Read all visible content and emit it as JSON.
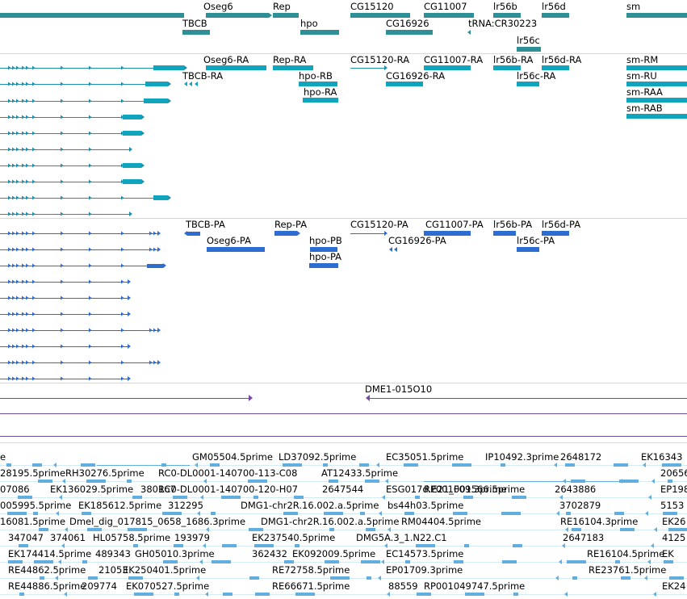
{
  "colors": {
    "gene": "#2f8f97",
    "transcript": "#10a5bd",
    "transcript_line": "#1f8fb0",
    "protein": "#2d6cd1",
    "marker": "#7b4aa8",
    "marker_line": "#6a4fa0",
    "est": "#63aee0",
    "separator": "#d8d8d8"
  },
  "tracks": {
    "genes": {
      "labels": [
        "Oseg6",
        "Rep",
        "CG15120",
        "CG11007",
        "lr56b",
        "lr56d",
        "sm",
        "TBCB",
        "hpo",
        "CG16926",
        "tRNA:CR30223",
        "lr56c"
      ]
    },
    "transcripts": {
      "labels": [
        "Oseg6-RA",
        "Rep-RA",
        "CG15120-RA",
        "CG11007-RA",
        "lr56b-RA",
        "lr56d-RA",
        "sm-RM",
        "TBCB-RA",
        "hpo-RB",
        "CG16926-RA",
        "lr56c-RA",
        "sm-RU",
        "hpo-RA",
        "sm-RAA",
        "sm-RAB"
      ]
    },
    "proteins": {
      "labels": [
        "TBCB-PA",
        "Rep-PA",
        "CG15120-PA",
        "CG11007-PA",
        "lr56b-PA",
        "lr56d-PA",
        "Oseg6-PA",
        "hpo-PB",
        "CG16926-PA",
        "lr56c-PA",
        "hpo-PA"
      ]
    },
    "markers": {
      "labels": [
        "DME1-015O10"
      ]
    },
    "ests": {
      "labels": [
        "GM05504.5prime",
        "LD37092.5prime",
        "EC35051.5prime",
        "IP10492.3prime",
        "2648172",
        "EK16343",
        "e",
        "28195.5prime",
        "RH30276.5prime",
        "RC0-DL0001-140700-113-C08",
        "AT12433.5prime",
        "20656",
        "07086",
        "EK136029.5prime",
        "380167",
        "RC0-DL0001-140700-120-H07",
        "2647544",
        "ESG017d.E21_F09.3prime",
        "2643886",
        "EP198",
        "005995.5prime",
        "EK185612.5prime",
        "312295",
        "DMG1-chr2R.16.002.a.5prime",
        "bs44h03.5prime",
        "3702879",
        "5153",
        "16081.5prime",
        "Dmel_dig_017815_0658_1686.3prime",
        "DMG1-chr2R.16.002.a.5prime",
        "RM04404.5prime",
        "RE16104.3prime",
        "EK26",
        "347047",
        "374061",
        "HL05758.5prime",
        "193979",
        "EK237540.5prime",
        "DMG5A.3_1.N22.C1",
        "2647183",
        "4125",
        "EK174414.5prime",
        "489343",
        "GH05010.3prime",
        "362432",
        "EK092009.5prime",
        "EC14573.5prime",
        "RE16104.5prime",
        "EK",
        "RE44862.5prime",
        "21053",
        "EK250401.5prime",
        "RE72758.5prime",
        "EP01709.3prime",
        "RE23761.5prime",
        "RE44886.5prime",
        "209774",
        "EK070527.5prime",
        "RE66671.5prime",
        "88559",
        "RP001049747.5prime",
        "EK24",
        "RP001001566.5prime"
      ]
    }
  }
}
